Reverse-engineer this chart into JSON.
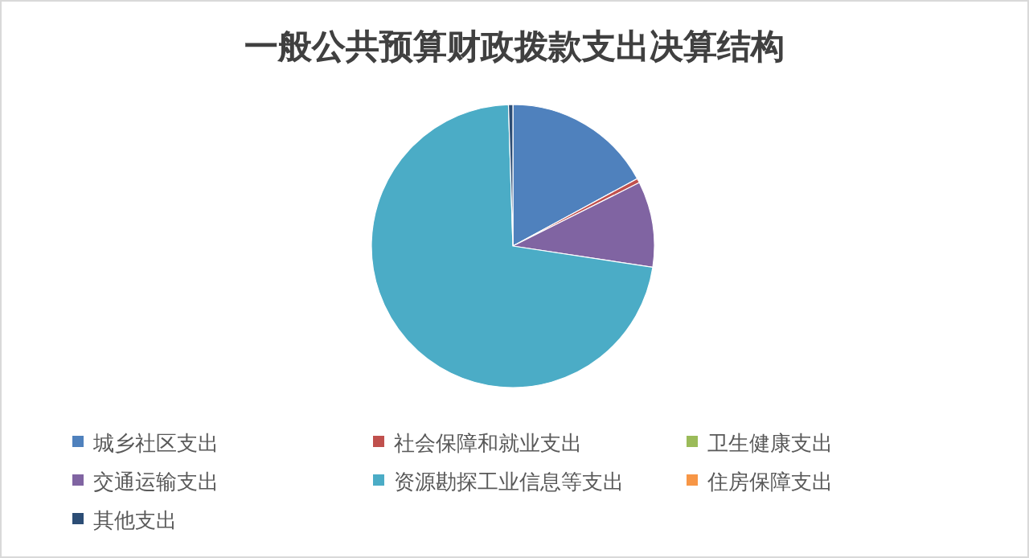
{
  "chart_data": {
    "type": "pie",
    "title": "一般公共预算财政拨款支出决算结构",
    "categories": [
      "城乡社区支出",
      "社会保障和就业支出",
      "卫生健康支出",
      "交通运输支出",
      "资源勘探工业信息等支出",
      "住房保障支出",
      "其他支出"
    ],
    "values": [
      17.1,
      0.5,
      0,
      9.8,
      72.1,
      0,
      0.5
    ],
    "colors": [
      "#4f81bd",
      "#c0504d",
      "#9bbb59",
      "#8064a2",
      "#4bacc6",
      "#f79646",
      "#2c4d75"
    ],
    "legend": "bottom"
  }
}
